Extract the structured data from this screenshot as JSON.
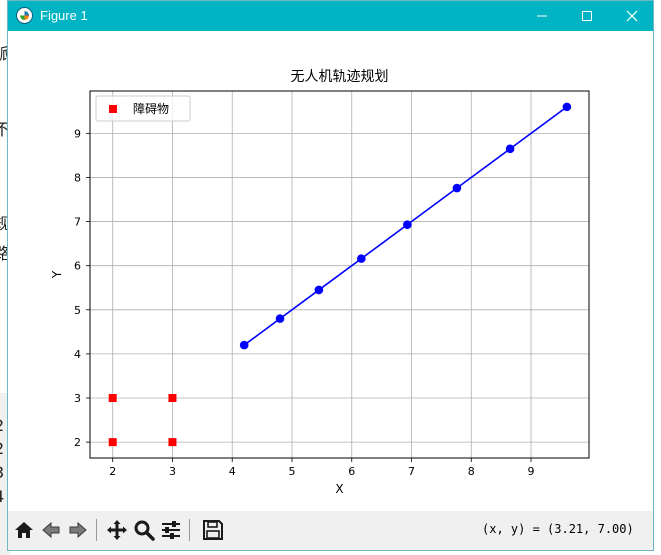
{
  "window": {
    "title": "Figure 1"
  },
  "toolbar": {
    "buttons": [
      {
        "name": "home-button",
        "icon": "home-icon"
      },
      {
        "name": "back-button",
        "icon": "arrow-left-icon"
      },
      {
        "name": "forward-button",
        "icon": "arrow-right-icon"
      },
      {
        "name": "pan-button",
        "icon": "move-icon"
      },
      {
        "name": "zoom-button",
        "icon": "magnifier-icon"
      },
      {
        "name": "configure-subplots-button",
        "icon": "sliders-icon"
      },
      {
        "name": "save-button",
        "icon": "floppy-disk-icon"
      }
    ],
    "coords": "(x, y) = (3.21, 7.00)"
  },
  "background_text": [
    "脈",
    "不",
    "规",
    "路",
    "2",
    "2",
    "3",
    "4"
  ],
  "chart_data": {
    "type": "scatter",
    "title": "无人机轨迹规划",
    "xlabel": "X",
    "ylabel": "Y",
    "xlim": [
      1.62,
      9.97
    ],
    "ylim": [
      1.64,
      9.96
    ],
    "xticks": [
      2,
      3,
      4,
      5,
      6,
      7,
      8,
      9
    ],
    "yticks": [
      2,
      3,
      4,
      5,
      6,
      7,
      8,
      9
    ],
    "grid": true,
    "legend": {
      "position": "upper-left",
      "entries": [
        "障碍物"
      ]
    },
    "series": [
      {
        "name": "障碍物",
        "kind": "scatter",
        "marker": "square",
        "color": "#ff0000",
        "points": [
          [
            2,
            2
          ],
          [
            2,
            3
          ],
          [
            3,
            2
          ],
          [
            3,
            3
          ]
        ]
      },
      {
        "kind": "line",
        "marker": "circle",
        "color": "#0000ff",
        "points": [
          [
            4.2,
            4.2
          ],
          [
            4.8,
            4.8
          ],
          [
            5.45,
            5.45
          ],
          [
            6.16,
            6.16
          ],
          [
            6.93,
            6.93
          ],
          [
            7.76,
            7.76
          ],
          [
            8.65,
            8.65
          ],
          [
            9.6,
            9.6
          ]
        ]
      }
    ]
  }
}
